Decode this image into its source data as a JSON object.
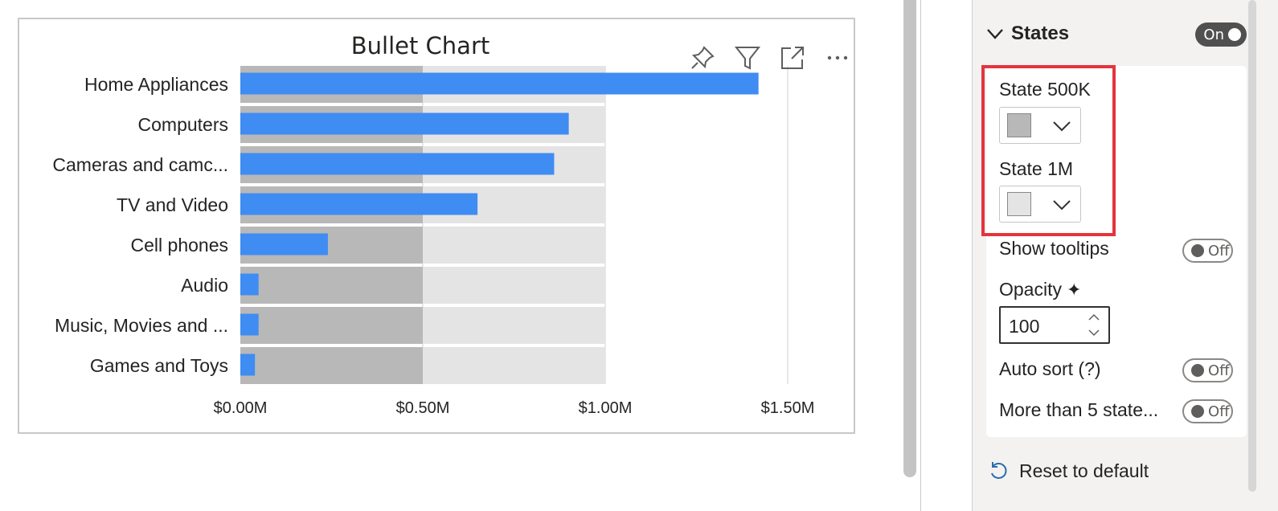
{
  "visual": {
    "title": "Bullet Chart",
    "header_icons": [
      "pin-icon",
      "filter-icon",
      "focus-mode-icon",
      "more-options-icon"
    ]
  },
  "chart_data": {
    "type": "bar",
    "orientation": "horizontal",
    "title": "Bullet Chart",
    "categories": [
      "Home Appliances",
      "Computers",
      "Cameras and camc...",
      "TV and Video",
      "Cell phones",
      "Audio",
      "Music, Movies and ...",
      "Games and Toys"
    ],
    "series": [
      {
        "values": [
          1.42,
          0.9,
          0.86,
          0.65,
          0.24,
          0.05,
          0.05,
          0.04
        ],
        "color": "#3f8cf3"
      }
    ],
    "states": [
      {
        "label": "State 500K",
        "value": 0.5,
        "color": "#b8b8b8"
      },
      {
        "label": "State 1M",
        "value": 1.0,
        "color": "#e4e4e4"
      }
    ],
    "x_ticks": [
      "$0.00M",
      "$0.50M",
      "$1.00M",
      "$1.50M"
    ],
    "x_tick_values": [
      0,
      0.5,
      1.0,
      1.5
    ],
    "xlim": [
      0,
      1.55
    ],
    "grid": true
  },
  "pane": {
    "section_title": "States",
    "section_toggle": "On",
    "state1_label": "State 500K",
    "state1_color": "#b8b8b8",
    "state2_label": "State 1M",
    "state2_color": "#e4e4e4",
    "tooltips_label": "Show tooltips",
    "tooltips_toggle": "Off",
    "opacity_label": "Opacity",
    "opacity_value": "100",
    "autosort_label": "Auto sort (?)",
    "autosort_toggle": "Off",
    "morestates_label": "More than 5 state...",
    "morestates_toggle": "Off",
    "reset_label": "Reset to default"
  }
}
